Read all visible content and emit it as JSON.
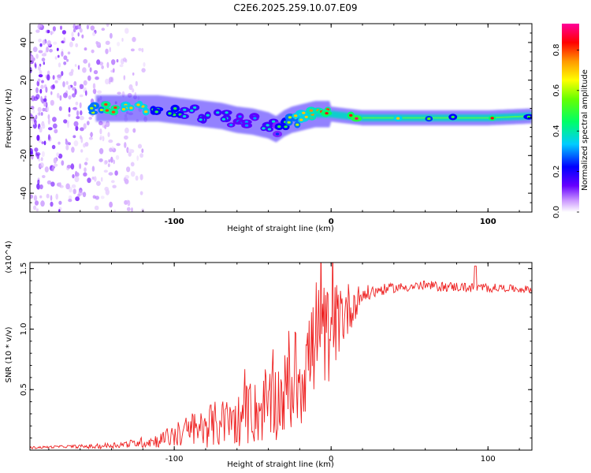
{
  "title": "C2E6.2025.259.10.07.E09",
  "chart_data": [
    {
      "type": "heatmap",
      "panel": "spectrogram",
      "xlabel": "Height of straight line (km)",
      "ylabel": "Frequency (Hz)",
      "xlim": [
        -192,
        128
      ],
      "ylim": [
        -50,
        50
      ],
      "xticks": [
        -100,
        0,
        100
      ],
      "yticks": [
        -40,
        -20,
        0,
        20,
        40
      ],
      "colorbar": {
        "label": "Normalized spectral amplitude",
        "range": [
          0.0,
          0.93
        ],
        "ticks": [
          0.0,
          0.2,
          0.4,
          0.6,
          0.8
        ],
        "colors": [
          "#ffffff",
          "#cc99ff",
          "#6600ff",
          "#0000ff",
          "#00ccff",
          "#00ff66",
          "#66ff00",
          "#ffff00",
          "#ff9900",
          "#ff0000",
          "#ff0099"
        ]
      },
      "ridge": {
        "description": "dominant frequency ridge (Hz) vs height (km)",
        "x": [
          -150,
          -140,
          -130,
          -120,
          -110,
          -100,
          -90,
          -80,
          -70,
          -60,
          -50,
          -40,
          -35,
          -30,
          -25,
          -20,
          -15,
          -10,
          -5,
          0,
          10,
          20,
          40,
          60,
          80,
          100,
          128
        ],
        "y": [
          5,
          5,
          5,
          5,
          5,
          4,
          3,
          2,
          1,
          -1,
          -2,
          -4,
          -6,
          -3,
          -1,
          0,
          1,
          2,
          2,
          2,
          1,
          0,
          0,
          0,
          0,
          0,
          1
        ],
        "peak_amplitude": [
          0.6,
          0.8,
          0.7,
          0.7,
          0.5,
          0.5,
          0.4,
          0.4,
          0.4,
          0.35,
          0.35,
          0.4,
          0.3,
          0.5,
          0.6,
          0.7,
          0.7,
          0.75,
          0.8,
          0.85,
          0.85,
          0.9,
          0.7,
          0.55,
          0.5,
          0.85,
          0.5
        ]
      },
      "noise_region": {
        "x_range": [
          -192,
          -130
        ],
        "description": "scattered low-amplitude spectral energy"
      }
    },
    {
      "type": "line",
      "panel": "snr",
      "xlabel": "Height of straight line (km)",
      "ylabel": "SNR (10 * v/v)",
      "y_multiplier": "(x10^4)",
      "xlim": [
        -192,
        128
      ],
      "ylim": [
        0,
        1.55
      ],
      "xticks": [
        -100,
        0,
        100
      ],
      "yticks": [
        0.5,
        1.0,
        1.5
      ],
      "series": [
        {
          "name": "SNR",
          "color": "#ee2020",
          "x": [
            -192,
            -170,
            -150,
            -130,
            -110,
            -100,
            -90,
            -80,
            -70,
            -60,
            -50,
            -40,
            -30,
            -20,
            -15,
            -10,
            -5,
            0,
            5,
            10,
            15,
            20,
            30,
            40,
            50,
            60,
            70,
            80,
            90,
            100,
            110,
            120,
            128
          ],
          "y": [
            0.02,
            0.03,
            0.03,
            0.05,
            0.08,
            0.12,
            0.16,
            0.2,
            0.22,
            0.25,
            0.3,
            0.36,
            0.45,
            0.62,
            0.75,
            0.85,
            0.92,
            1.0,
            1.08,
            1.15,
            1.22,
            1.28,
            1.32,
            1.34,
            1.35,
            1.36,
            1.35,
            1.35,
            1.34,
            1.34,
            1.34,
            1.33,
            1.33
          ],
          "spread": [
            0.01,
            0.01,
            0.02,
            0.03,
            0.06,
            0.1,
            0.14,
            0.18,
            0.2,
            0.22,
            0.26,
            0.3,
            0.35,
            0.45,
            0.5,
            0.5,
            0.45,
            0.4,
            0.3,
            0.25,
            0.15,
            0.08,
            0.05,
            0.04,
            0.04,
            0.04,
            0.04,
            0.04,
            0.04,
            0.04,
            0.03,
            0.03,
            0.03
          ],
          "spike": {
            "x": 92,
            "y": 1.52
          }
        }
      ]
    }
  ]
}
